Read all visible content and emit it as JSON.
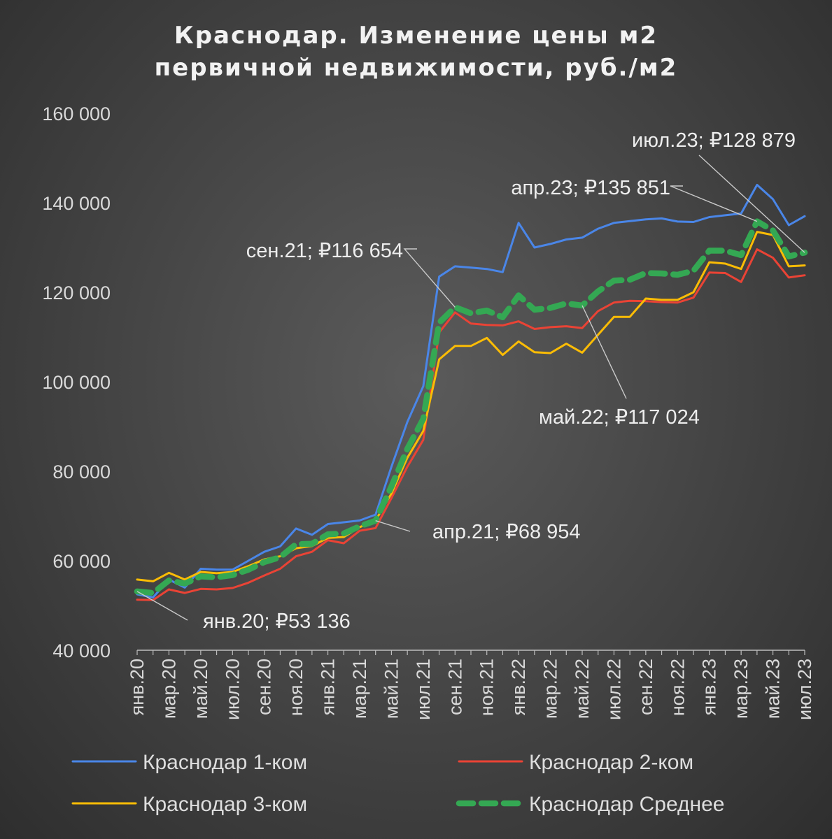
{
  "chart_data": {
    "type": "line",
    "title": "Краснодар. Изменение цены м2 первичной недвижимости, руб./м2",
    "title_lines": [
      "Краснодар. Изменение цены м2",
      "первичной недвижимости, руб./м2"
    ],
    "ylim": [
      40000,
      160000
    ],
    "yticks": [
      "40 000",
      "60 000",
      "80 000",
      "100 000",
      "120 000",
      "140 000",
      "160 000"
    ],
    "grid": false,
    "legend_position": "bottom",
    "categories": [
      "янв.20",
      "фев.20",
      "мар.20",
      "апр.20",
      "май.20",
      "июн.20",
      "июл.20",
      "авг.20",
      "сен.20",
      "окт.20",
      "ноя.20",
      "дек.20",
      "янв.21",
      "фев.21",
      "мар.21",
      "апр.21",
      "май.21",
      "июн.21",
      "июл.21",
      "авг.21",
      "сен.21",
      "окт.21",
      "ноя.21",
      "дек.21",
      "янв.22",
      "фев.22",
      "мар.22",
      "апр.22",
      "май.22",
      "июн.22",
      "июл.22",
      "авг.22",
      "сен.22",
      "окт.22",
      "ноя.22",
      "дек.22",
      "янв.23",
      "фев.23",
      "мар.23",
      "апр.23",
      "май.23",
      "июн.23",
      "июл.23"
    ],
    "tick_labels": [
      "янв.20",
      "мар.20",
      "май.20",
      "июл.20",
      "сен.20",
      "ноя.20",
      "янв.21",
      "мар.21",
      "май.21",
      "июл.21",
      "сен.21",
      "ноя.21",
      "янв.22",
      "мар.22",
      "май.22",
      "июл.22",
      "сен.22",
      "ноя.22",
      "янв.23",
      "мар.23",
      "май.23",
      "июл.23"
    ],
    "series": [
      {
        "name": "Краснодар 1-ком",
        "color": "#4a86e8",
        "dashed": false,
        "values": [
          52500,
          51800,
          55800,
          54000,
          58200,
          58000,
          58000,
          60000,
          62000,
          63200,
          67200,
          65800,
          68200,
          68600,
          69000,
          70300,
          81000,
          91000,
          99000,
          123500,
          125800,
          125500,
          125200,
          124500,
          135500,
          130000,
          130800,
          131800,
          132200,
          134200,
          135500,
          135900,
          136300,
          136500,
          135800,
          135700,
          136800,
          137200,
          137600,
          144000,
          140800,
          135000,
          137000
        ]
      },
      {
        "name": "Краснодар 2-ком",
        "color": "#ea4335",
        "dashed": false,
        "values": [
          51300,
          51200,
          53600,
          52800,
          53700,
          53600,
          53900,
          55100,
          56700,
          58200,
          61000,
          62000,
          64600,
          63900,
          66700,
          67300,
          74000,
          81000,
          87000,
          111000,
          115500,
          113000,
          112700,
          112600,
          113500,
          111800,
          112200,
          112400,
          112000,
          115800,
          117700,
          118100,
          118000,
          117800,
          117700,
          118800,
          124400,
          124300,
          122300,
          129600,
          127700,
          123300,
          123800
        ]
      },
      {
        "name": "Краснодар 3-ком",
        "color": "#fbbc05",
        "dashed": false,
        "values": [
          55800,
          55400,
          57300,
          55800,
          57500,
          57200,
          57500,
          58800,
          60300,
          61000,
          62800,
          63300,
          65100,
          65300,
          67500,
          69000,
          75000,
          83000,
          89000,
          105000,
          108000,
          108000,
          109800,
          106000,
          109000,
          106600,
          106400,
          108500,
          106500,
          110500,
          114500,
          114500,
          118600,
          118300,
          118300,
          120000,
          126700,
          126400,
          125200,
          133500,
          132800,
          125800,
          126000
        ]
      },
      {
        "name": "Краснодар Среднее",
        "color": "#34a853",
        "dashed": true,
        "values": [
          53136,
          52800,
          55600,
          54900,
          56500,
          56300,
          56800,
          58000,
          59700,
          60800,
          63700,
          63800,
          65900,
          66100,
          67700,
          68954,
          76600,
          85000,
          91700,
          113200,
          116654,
          115300,
          115900,
          114400,
          119300,
          116100,
          116500,
          117500,
          117024,
          120200,
          122600,
          122800,
          124300,
          124200,
          123900,
          124800,
          129300,
          129300,
          128300,
          135851,
          133800,
          128000,
          128879
        ]
      }
    ],
    "annotations": [
      {
        "label": "янв.20;  ₽53 136",
        "category": "янв.20",
        "value": 53136
      },
      {
        "label": "апр.21;  ₽68 954",
        "category": "апр.21",
        "value": 68954
      },
      {
        "label": "сен.21;  ₽116 654",
        "category": "сен.21",
        "value": 116654
      },
      {
        "label": "май.22;  ₽117 024",
        "category": "май.22",
        "value": 117024
      },
      {
        "label": "апр.23;  ₽135 851",
        "category": "апр.23",
        "value": 135851
      },
      {
        "label": "июл.23;  ₽128 879",
        "category": "июл.23",
        "value": 128879
      }
    ]
  }
}
